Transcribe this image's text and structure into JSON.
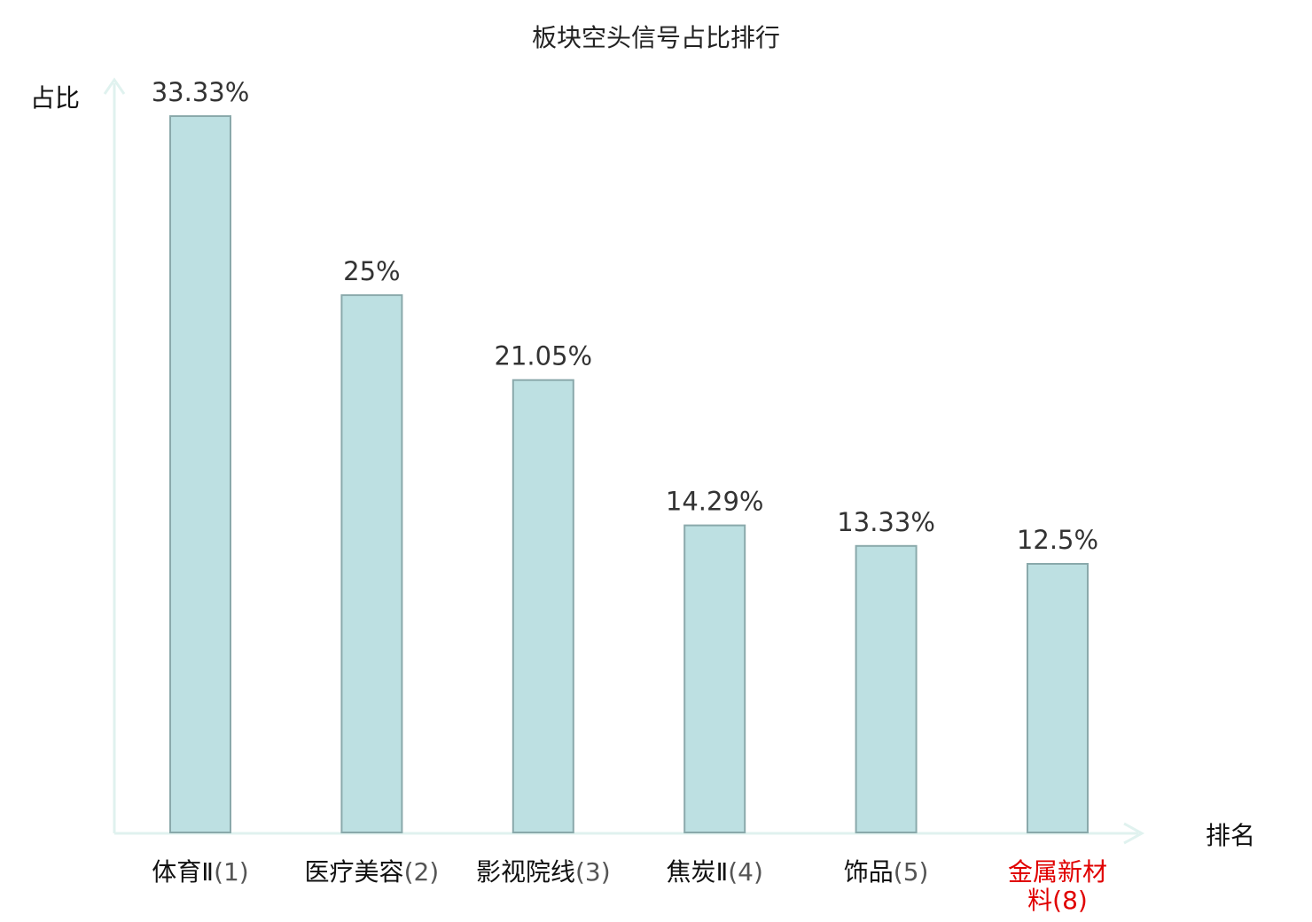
{
  "chart_data": {
    "type": "bar",
    "title": "板块空头信号占比排行",
    "ylabel": "占比",
    "xlabel": "排名",
    "categories": [
      {
        "name": "体育Ⅱ",
        "rank": "(1)",
        "highlight": false
      },
      {
        "name": "医疗美容",
        "rank": "(2)",
        "highlight": false
      },
      {
        "name": "影视院线",
        "rank": "(3)",
        "highlight": false
      },
      {
        "name": "焦炭Ⅱ",
        "rank": "(4)",
        "highlight": false
      },
      {
        "name": "饰品",
        "rank": "(5)",
        "highlight": false
      },
      {
        "name": "金属新材料",
        "rank": "(8)",
        "highlight": true,
        "wrap": [
          "金属新材",
          "料(8)"
        ]
      }
    ],
    "values": [
      33.33,
      25,
      21.05,
      14.29,
      13.33,
      12.5
    ],
    "value_labels": [
      "33.33%",
      "25%",
      "21.05%",
      "14.29%",
      "13.33%",
      "12.5%"
    ],
    "ylim": [
      0,
      35
    ],
    "grid": false,
    "legend": "none",
    "colors": {
      "bar_fill": "#bde0e2",
      "bar_stroke": "#8aa9ab",
      "axis": "#e0f2ef",
      "highlight_text": "#e00000",
      "text": "#111111"
    }
  }
}
